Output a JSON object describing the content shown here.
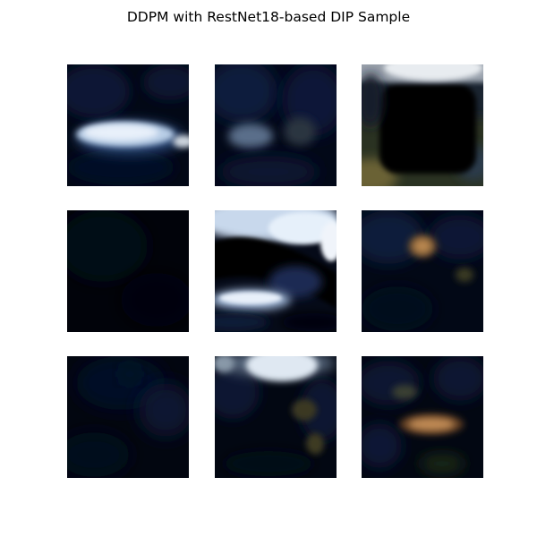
{
  "figure": {
    "title": "DDPM with RestNet18-based DIP Sample"
  },
  "samples": [
    {
      "index": 1,
      "content": "pale blue-white elongated blob on dark navy"
    },
    {
      "index": 2,
      "content": "faint blue haze on dark navy"
    },
    {
      "index": 3,
      "content": "white band at top, black rounded shape, olive lower-left corner"
    },
    {
      "index": 4,
      "content": "almost entirely black"
    },
    {
      "index": 5,
      "content": "white and light-blue streaks with black diagonal band"
    },
    {
      "index": 6,
      "content": "small orange-brown blob on dark navy"
    },
    {
      "index": 7,
      "content": "nearly black with faint navy tint"
    },
    {
      "index": 8,
      "content": "white blob at top, faint olive patches below"
    },
    {
      "index": 9,
      "content": "orange horizontal blob on dark navy"
    }
  ],
  "colors": {
    "background": "#ffffff",
    "tile_base": "#01040c",
    "highlight_white": "#e6f0fa",
    "highlight_orange": "#b9874f",
    "olive": "#5e5a35"
  }
}
